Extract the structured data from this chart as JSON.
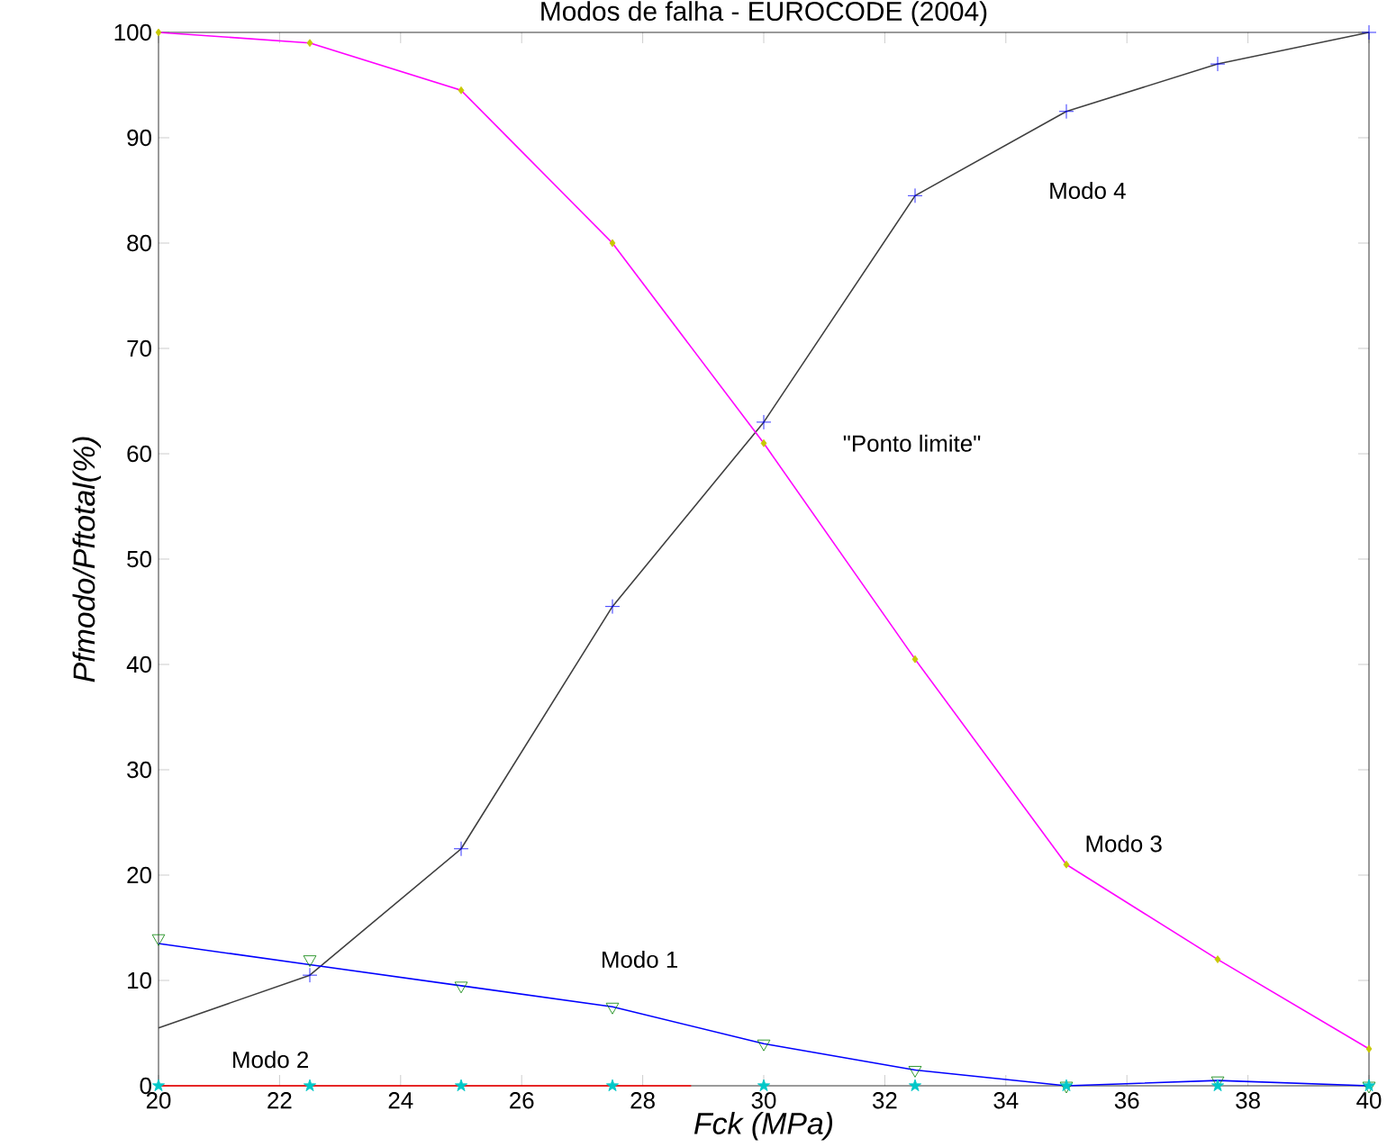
{
  "chart_data": {
    "type": "line",
    "title": "Modos de falha - EUROCODE (2004)",
    "xlabel": "Fck (MPa)",
    "ylabel": "Pfmodo/Pftotal(%)",
    "x": [
      20,
      22.5,
      25,
      27.5,
      30,
      32.5,
      35,
      37.5,
      40
    ],
    "series": [
      {
        "color": "#404040",
        "marker": "none",
        "values": [
          5.5,
          10.5,
          22.5,
          45.5,
          63,
          84.5,
          92.5,
          97,
          100
        ]
      },
      {
        "type": "scatter",
        "color": "#0000ff",
        "marker": "cross",
        "values": [
          null,
          10.5,
          22.5,
          45.5,
          63,
          84.5,
          92.5,
          97,
          100
        ]
      },
      {
        "color": "#ff00ff",
        "marker": "none",
        "values": [
          100,
          99,
          94.5,
          80,
          61,
          40.5,
          21,
          12,
          3.5
        ]
      },
      {
        "type": "scatter",
        "color": "#c8c800",
        "marker": "diamond",
        "values": [
          100,
          99,
          94.5,
          80,
          61,
          40.5,
          21,
          12,
          3.5
        ]
      },
      {
        "color": "#0000ff",
        "marker": "none",
        "values": [
          13.5,
          11.5,
          9.5,
          7.5,
          4,
          1.5,
          0,
          0.5,
          0
        ]
      },
      {
        "type": "scatter",
        "color": "#008000",
        "marker": "triangle",
        "values": [
          14,
          12,
          9.5,
          7.5,
          4,
          1.5,
          0,
          0.5,
          0
        ]
      },
      {
        "color": "#ff0000",
        "marker": "none",
        "x": [
          20,
          28.8
        ],
        "values": [
          0,
          0
        ]
      },
      {
        "type": "scatter",
        "color": "#00c8c8",
        "marker": "star",
        "values": [
          0,
          0,
          0,
          0,
          0,
          0,
          0,
          0,
          0
        ]
      }
    ],
    "xlim": [
      20,
      40
    ],
    "ylim": [
      0,
      100
    ],
    "xticks": [
      20,
      22,
      24,
      26,
      28,
      30,
      32,
      34,
      36,
      38,
      40
    ],
    "yticks": [
      0,
      10,
      20,
      30,
      40,
      50,
      60,
      70,
      80,
      90,
      100
    ],
    "annotations": [
      "Modo 4",
      "\"Ponto limite\"",
      "Modo 3",
      "Modo 1",
      "Modo 2"
    ]
  }
}
